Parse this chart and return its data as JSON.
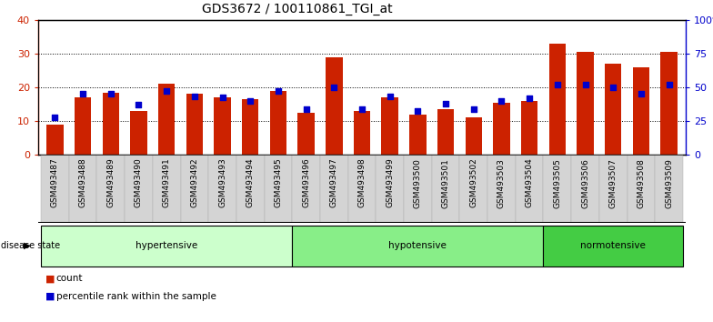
{
  "title": "GDS3672 / 100110861_TGI_at",
  "samples": [
    "GSM493487",
    "GSM493488",
    "GSM493489",
    "GSM493490",
    "GSM493491",
    "GSM493492",
    "GSM493493",
    "GSM493494",
    "GSM493495",
    "GSM493496",
    "GSM493497",
    "GSM493498",
    "GSM493499",
    "GSM493500",
    "GSM493501",
    "GSM493502",
    "GSM493503",
    "GSM493504",
    "GSM493505",
    "GSM493506",
    "GSM493507",
    "GSM493508",
    "GSM493509"
  ],
  "red_values": [
    9.0,
    17.0,
    18.5,
    13.0,
    21.0,
    18.0,
    17.0,
    16.5,
    19.0,
    12.5,
    29.0,
    13.0,
    17.0,
    12.0,
    13.5,
    11.0,
    15.5,
    16.0,
    33.0,
    30.5,
    27.0,
    26.0,
    30.5
  ],
  "blue_values": [
    27.5,
    45.0,
    45.0,
    37.0,
    47.0,
    43.0,
    42.5,
    40.0,
    47.0,
    34.0,
    50.0,
    34.0,
    43.0,
    32.5,
    38.0,
    34.0,
    40.0,
    42.0,
    52.0,
    52.0,
    50.0,
    45.0,
    52.0
  ],
  "disease_groups": [
    {
      "label": "hypertensive",
      "start": 0,
      "end": 9,
      "color": "#ccffcc"
    },
    {
      "label": "hypotensive",
      "start": 9,
      "end": 18,
      "color": "#88ee88"
    },
    {
      "label": "normotensive",
      "start": 18,
      "end": 23,
      "color": "#44cc44"
    }
  ],
  "bar_color": "#cc2200",
  "dot_color": "#0000cc",
  "ylim_left": [
    0,
    40
  ],
  "ylim_right": [
    0,
    100
  ],
  "yticks_left": [
    0,
    10,
    20,
    30,
    40
  ],
  "yticks_right": [
    0,
    25,
    50,
    75,
    100
  ],
  "ytick_labels_right": [
    "0",
    "25",
    "50",
    "75",
    "100%"
  ],
  "background_color": "#ffffff",
  "xtick_bg_color": "#d4d4d4",
  "grid_color": "#000000",
  "title_fontsize": 10,
  "tick_fontsize": 6,
  "label_fontsize": 7.5
}
